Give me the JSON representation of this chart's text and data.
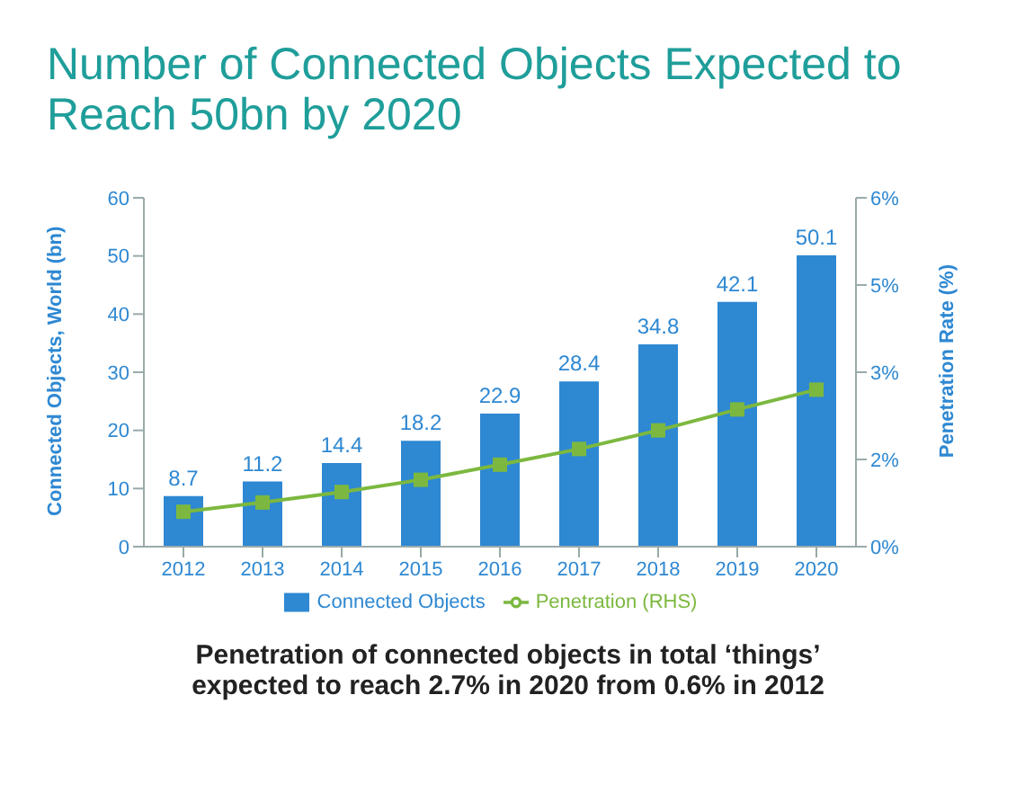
{
  "chart_data": {
    "type": "bar",
    "title": "Number of Connected Objects Expected to Reach 50bn by 2020",
    "categories": [
      "2012",
      "2013",
      "2014",
      "2015",
      "2016",
      "2017",
      "2018",
      "2019",
      "2020"
    ],
    "series": [
      {
        "name": "Connected Objects",
        "color": "#2e88d2",
        "values": [
          8.7,
          11.2,
          14.4,
          18.2,
          22.9,
          28.4,
          34.8,
          42.1,
          50.1
        ],
        "value_labels": [
          "8.7",
          "11.2",
          "14.4",
          "18.2",
          "22.9",
          "28.4",
          "34.8",
          "42.1",
          "50.1"
        ]
      },
      {
        "name": "Penetration (RHS)",
        "type": "line",
        "axis": "y2",
        "color": "#7cb83f",
        "marker": "square",
        "values": [
          0.6,
          0.76,
          0.94,
          1.15,
          1.41,
          1.68,
          2.0,
          2.36,
          2.7
        ]
      }
    ],
    "ylabel": "Connected Objects, World (bn)",
    "y2label": "Penetration Rate (%)",
    "ylim": [
      0,
      60
    ],
    "yticks": [
      0,
      10,
      20,
      30,
      40,
      50,
      60
    ],
    "y2lim": [
      0,
      6
    ],
    "y2ticks": [
      {
        "value": 0,
        "label": "0%"
      },
      {
        "value": 1.5,
        "label": "2%"
      },
      {
        "value": 3,
        "label": "3%"
      },
      {
        "value": 4.5,
        "label": "5%"
      },
      {
        "value": 6,
        "label": "6%"
      }
    ],
    "legend": "bottom",
    "grid": false,
    "annotations": [
      "Penetration of connected objects in total ‘things’ expected to reach 2.7% in 2020 from 0.6% in 2012"
    ]
  }
}
